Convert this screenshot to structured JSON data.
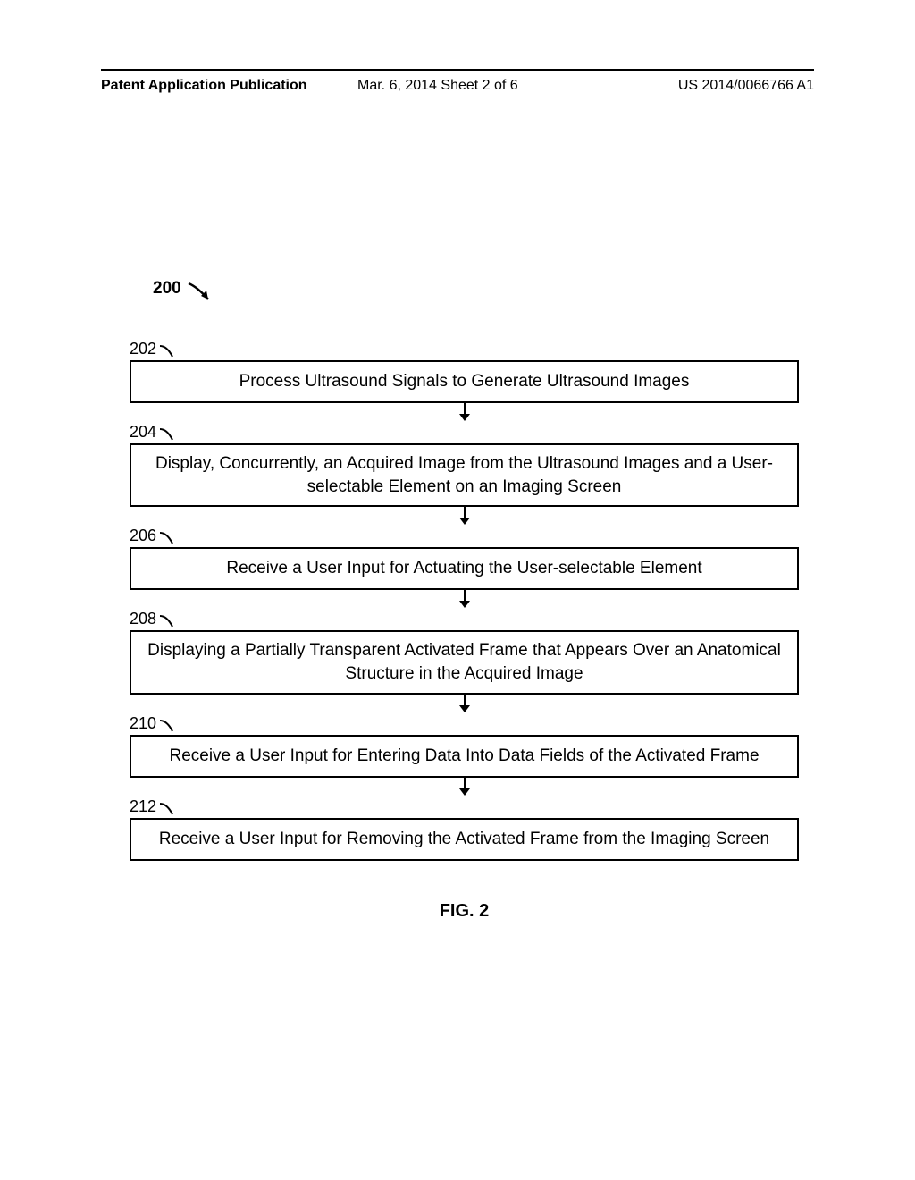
{
  "header": {
    "left": "Patent Application Publication",
    "center": "Mar. 6, 2014  Sheet 2 of 6",
    "right": "US 2014/0066766 A1"
  },
  "flowchart": {
    "main_ref": "200",
    "steps": [
      {
        "ref": "202",
        "text": "Process Ultrasound Signals to Generate Ultrasound Images"
      },
      {
        "ref": "204",
        "text": "Display, Concurrently, an Acquired Image from the Ultrasound Images and a User-selectable Element on an Imaging Screen"
      },
      {
        "ref": "206",
        "text": "Receive a User Input for Actuating the User-selectable Element"
      },
      {
        "ref": "208",
        "text": "Displaying a Partially Transparent Activated Frame that Appears Over an Anatomical Structure in the Acquired Image"
      },
      {
        "ref": "210",
        "text": "Receive a User Input for Entering Data Into Data Fields of the Activated Frame"
      },
      {
        "ref": "212",
        "text": "Receive a User Input for Removing the Activated Frame from the Imaging Screen"
      }
    ],
    "figure_label": "FIG. 2"
  },
  "styling": {
    "box_border_color": "#000000",
    "box_border_width": 2,
    "background_color": "#ffffff",
    "text_color": "#000000",
    "header_fontsize": 16,
    "step_text_fontsize": 19,
    "ref_fontsize": 18,
    "figure_fontsize": 20
  }
}
